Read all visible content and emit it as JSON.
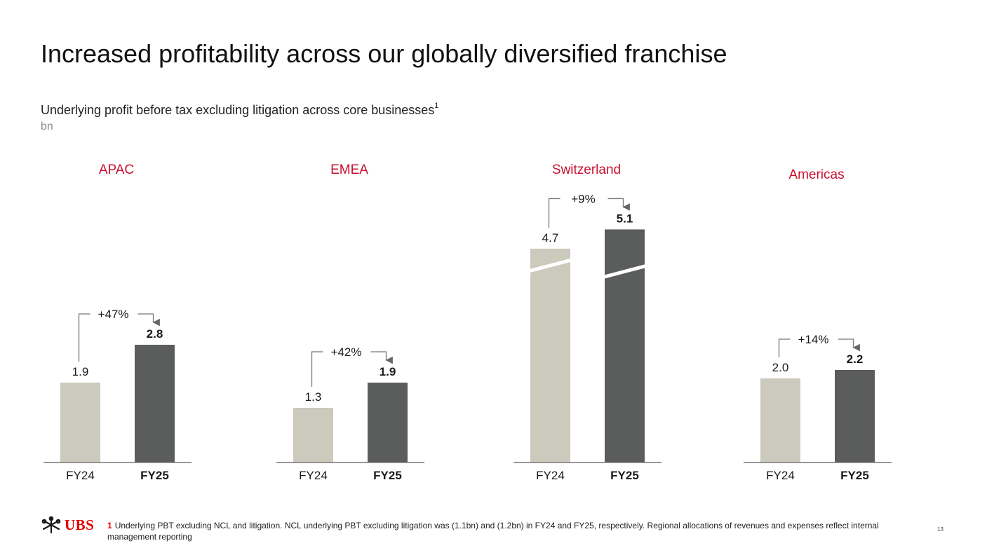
{
  "title": "Increased profitability across our globally diversified franchise",
  "subtitle": "Underlying profit before tax excluding litigation across core businesses",
  "subtitle_footnote_mark": "1",
  "unit_label": "bn",
  "colors": {
    "fy24": "#ccc9bd",
    "fy25": "#5b5c5c",
    "region": "#c8102e",
    "axis": "#777777",
    "brand": "#e60000"
  },
  "chart_data": [
    {
      "type": "bar",
      "region": "APAC",
      "categories": [
        "FY24",
        "FY25"
      ],
      "values": [
        1.9,
        2.8
      ],
      "value_labels": [
        "1.9",
        "2.8"
      ],
      "change": "+47%",
      "ylim": [
        0,
        5.5
      ],
      "broken_axis": false
    },
    {
      "type": "bar",
      "region": "EMEA",
      "categories": [
        "FY24",
        "FY25"
      ],
      "values": [
        1.3,
        1.9
      ],
      "value_labels": [
        "1.3",
        "1.9"
      ],
      "change": "+42%",
      "ylim": [
        0,
        5.5
      ],
      "broken_axis": false
    },
    {
      "type": "bar",
      "region": "Switzerland",
      "categories": [
        "FY24",
        "FY25"
      ],
      "values": [
        4.7,
        5.1
      ],
      "value_labels": [
        "4.7",
        "5.1"
      ],
      "change": "+9%",
      "ylim": [
        0,
        5.5
      ],
      "broken_axis": true
    },
    {
      "type": "bar",
      "region": "Americas",
      "categories": [
        "FY24",
        "FY25"
      ],
      "values": [
        2.0,
        2.2
      ],
      "value_labels": [
        "2.0",
        "2.2"
      ],
      "change": "+14%",
      "ylim": [
        0,
        5.5
      ],
      "broken_axis": false
    }
  ],
  "footer": {
    "logo_text": "UBS",
    "footnote_number": "1",
    "footnote_text": "Underlying PBT excluding NCL and litigation. NCL underlying PBT excluding litigation was (1.1bn) and (1.2bn) in FY24 and FY25, respectively. Regional allocations of revenues and expenses reflect internal management reporting",
    "page_number": "13"
  }
}
